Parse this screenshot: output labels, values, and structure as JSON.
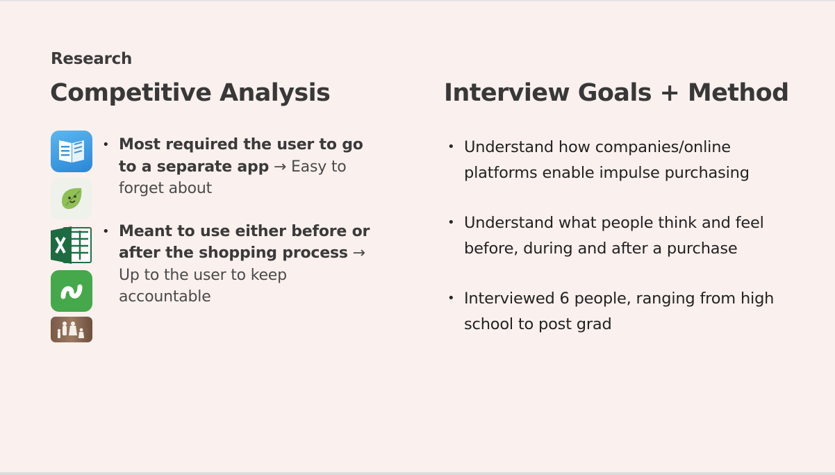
{
  "eyebrow": "Research",
  "left": {
    "title": "Competitive Analysis",
    "icons": [
      "notes-app-icon",
      "leaf-mascot-app-icon",
      "excel-icon",
      "stash-app-icon",
      "family-photo-icon"
    ],
    "bullets": [
      {
        "bold": "Most required the user to go to a separate app",
        "rest": " → Easy to forget about"
      },
      {
        "bold": "Meant to use either before or after the shopping process",
        "rest": " → Up to the user to keep accountable"
      }
    ]
  },
  "right": {
    "title": "Interview Goals + Method",
    "bullets": [
      "Understand how companies/online platforms enable impulse purchasing",
      "Understand what people think and feel before, during and after a purchase",
      "Interviewed 6 people, ranging from high school to post grad"
    ]
  }
}
